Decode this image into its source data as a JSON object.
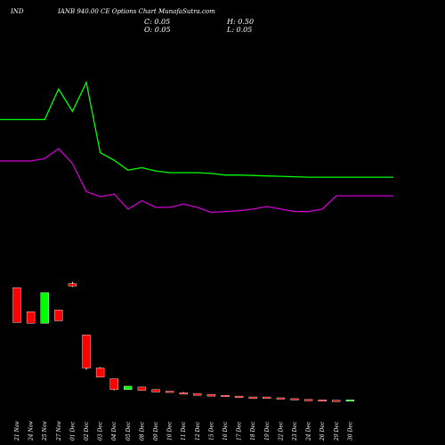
{
  "header": {
    "symbol": "IND",
    "title": "IANB 940.00 CE Options  Chart MunafaSutra.com",
    "open_label": "C: 0.05",
    "high_label": "H: 0.50",
    "close_label": "O: 0.05",
    "low_label": "L: 0.05"
  },
  "colors": {
    "background": "#000000",
    "up_candle": "#00ff00",
    "down_candle": "#ff0000",
    "line_green": "#00ff00",
    "line_magenta": "#cc00cc",
    "label_text": "#ffffff"
  },
  "chart_data": {
    "type": "candlestick",
    "categories": [
      "21 Nov",
      "24 Nov",
      "25 Nov",
      "27 Nov",
      "01 Dec",
      "02 Dec",
      "03 Dec",
      "04 Dec",
      "05 Dec",
      "08 Dec",
      "09 Dec",
      "10 Dec",
      "11 Dec",
      "12 Dec",
      "15 Dec",
      "16 Dec",
      "17 Dec",
      "18 Dec",
      "19 Dec",
      "22 Dec",
      "23 Dec",
      "24 Dec",
      "26 Dec",
      "29 Dec",
      "30 Dec"
    ],
    "candles": [
      {
        "open": 9.7,
        "high": 9.7,
        "low": 5.5,
        "close": 5.5,
        "color": "down"
      },
      {
        "open": 6.8,
        "high": 6.8,
        "low": 5.4,
        "close": 5.4,
        "color": "down"
      },
      {
        "open": 5.4,
        "high": 9.1,
        "low": 5.4,
        "close": 9.1,
        "color": "up"
      },
      {
        "open": 7.0,
        "high": 7.0,
        "low": 5.7,
        "close": 5.7,
        "color": "down"
      },
      {
        "open": 10.2,
        "high": 10.4,
        "low": 9.8,
        "close": 9.9,
        "color": "down"
      },
      {
        "open": 4.0,
        "high": 4.0,
        "low": -0.2,
        "close": 0.0,
        "color": "down"
      },
      {
        "open": 0.0,
        "high": 0.1,
        "low": -1.1,
        "close": -1.1,
        "color": "down"
      },
      {
        "open": -1.3,
        "high": -1.3,
        "low": -2.7,
        "close": -2.6,
        "color": "down"
      },
      {
        "open": -2.6,
        "high": -2.2,
        "low": -2.6,
        "close": -2.2,
        "color": "up"
      },
      {
        "open": -2.3,
        "high": -2.3,
        "low": -2.7,
        "close": -2.7,
        "color": "down"
      },
      {
        "open": -2.6,
        "high": -2.6,
        "low": -2.9,
        "close": -2.9,
        "color": "down"
      },
      {
        "open": -2.8,
        "high": -2.8,
        "low": -2.9,
        "close": -2.9,
        "color": "down"
      },
      {
        "open": -3.0,
        "high": -2.9,
        "low": -3.1,
        "close": -3.1,
        "color": "down"
      },
      {
        "open": -3.1,
        "high": -3.1,
        "low": -3.3,
        "close": -3.3,
        "color": "down"
      },
      {
        "open": -3.2,
        "high": -3.2,
        "low": -3.4,
        "close": -3.4,
        "color": "down"
      },
      {
        "open": -3.3,
        "high": -3.3,
        "low": -3.4,
        "close": -3.4,
        "color": "down"
      },
      {
        "open": -3.4,
        "high": -3.4,
        "low": -3.5,
        "close": -3.5,
        "color": "down"
      },
      {
        "open": -3.5,
        "high": -3.5,
        "low": -3.6,
        "close": -3.6,
        "color": "down"
      },
      {
        "open": -3.5,
        "high": -3.5,
        "low": -3.6,
        "close": -3.6,
        "color": "down"
      },
      {
        "open": -3.6,
        "high": -3.6,
        "low": -3.7,
        "close": -3.7,
        "color": "down"
      },
      {
        "open": -3.7,
        "high": -3.7,
        "low": -3.8,
        "close": -3.8,
        "color": "down"
      },
      {
        "open": -3.8,
        "high": -3.8,
        "low": -3.85,
        "close": -3.85,
        "color": "down"
      },
      {
        "open": -3.85,
        "high": -3.85,
        "low": -3.9,
        "close": -3.9,
        "color": "down"
      },
      {
        "open": -3.9,
        "high": -3.9,
        "low": -3.9,
        "close": -3.9,
        "color": "down"
      },
      {
        "open": -3.9,
        "high": -3.85,
        "low": -3.9,
        "close": -3.85,
        "color": "up"
      }
    ],
    "series": [
      {
        "values": [
          30.0,
          30.0,
          30.0,
          33.7,
          31.0,
          34.5,
          26.0,
          25.1,
          23.9,
          24.2,
          23.8,
          23.6,
          23.6,
          23.6,
          23.5,
          23.3,
          23.3,
          23.25,
          23.2,
          23.15,
          23.1,
          23.05,
          23.05,
          23.05,
          23.05
        ]
      },
      {
        "values": [
          25.0,
          25.0,
          25.3,
          26.5,
          24.7,
          21.3,
          20.7,
          21.0,
          19.2,
          20.2,
          19.4,
          19.4,
          19.8,
          19.4,
          18.8,
          18.9,
          19.0,
          19.2,
          19.5,
          19.2,
          18.9,
          18.9,
          19.2,
          20.8,
          20.8
        ]
      }
    ],
    "ylim": [
      -5,
      38
    ]
  }
}
